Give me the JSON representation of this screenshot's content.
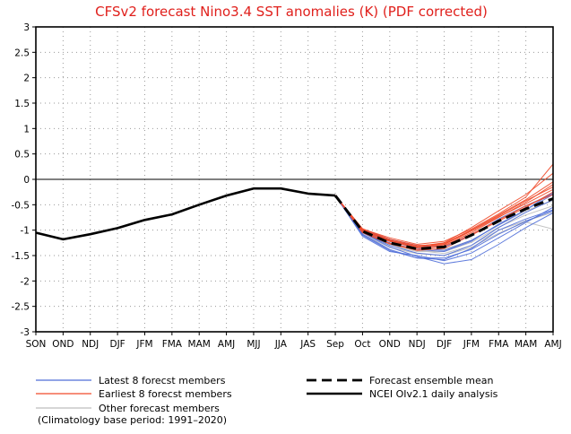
{
  "chart_data": {
    "type": "line",
    "title": "CFSv2 forecast Nino3.4 SST anomalies (K) (PDF corrected)",
    "xlabel": "",
    "ylabel": "",
    "categories": [
      "SON",
      "OND",
      "NDJ",
      "DJF",
      "JFM",
      "FMA",
      "MAM",
      "AMJ",
      "MJJ",
      "JJA",
      "JAS",
      "Sep",
      "Oct",
      "OND",
      "NDJ",
      "DJF",
      "JFM",
      "FMA",
      "MAM",
      "AMJ"
    ],
    "ylim": [
      -3,
      3
    ],
    "yticks": [
      -3,
      -2.5,
      -2,
      -1.5,
      -1,
      -0.5,
      0,
      0.5,
      1,
      1.5,
      2,
      2.5,
      3
    ],
    "grid": true,
    "colors": {
      "latest": "#4f6ed8",
      "earliest": "#f04a2a",
      "other": "#bdbdbd",
      "mean": "#000000",
      "analysis": "#000000",
      "title": "#e0201c"
    },
    "analysis": {
      "name": "NCEI OIv2.1 daily analysis",
      "x_index": [
        0,
        1,
        2,
        3,
        4,
        5,
        6,
        7,
        8,
        9,
        10,
        11
      ],
      "values": [
        -1.05,
        -1.18,
        -1.08,
        -0.96,
        -0.8,
        -0.69,
        -0.5,
        -0.32,
        -0.18,
        -0.18,
        -0.28,
        -0.32
      ]
    },
    "ensemble_mean": {
      "name": "Forecast ensemble mean",
      "x_index": [
        11,
        12,
        13,
        14,
        15,
        16,
        17,
        18,
        19
      ],
      "values": [
        -0.32,
        -1.02,
        -1.25,
        -1.37,
        -1.33,
        -1.1,
        -0.82,
        -0.58,
        -0.38
      ]
    },
    "member_groups": [
      {
        "group": "latest",
        "name": "Latest 8 forecst members",
        "x_index": [
          11,
          12,
          13,
          14,
          15,
          16,
          17,
          18,
          19
        ],
        "members": [
          [
            -0.32,
            -1.08,
            -1.38,
            -1.55,
            -1.58,
            -1.36,
            -1.0,
            -0.78,
            -0.6
          ],
          [
            -0.32,
            -1.05,
            -1.33,
            -1.52,
            -1.66,
            -1.58,
            -1.28,
            -0.95,
            -0.66
          ],
          [
            -0.32,
            -1.12,
            -1.42,
            -1.5,
            -1.6,
            -1.45,
            -1.15,
            -0.85,
            -0.55
          ],
          [
            -0.32,
            -1.0,
            -1.2,
            -1.35,
            -1.4,
            -1.2,
            -0.9,
            -0.6,
            -0.3
          ],
          [
            -0.32,
            -1.05,
            -1.3,
            -1.45,
            -1.5,
            -1.3,
            -0.95,
            -0.65,
            -0.4
          ],
          [
            -0.32,
            -0.98,
            -1.18,
            -1.3,
            -1.33,
            -1.1,
            -0.78,
            -0.52,
            -0.28
          ],
          [
            -0.32,
            -1.1,
            -1.4,
            -1.55,
            -1.55,
            -1.38,
            -1.08,
            -0.82,
            -0.62
          ],
          [
            -0.32,
            -1.02,
            -1.25,
            -1.38,
            -1.42,
            -1.22,
            -0.88,
            -0.6,
            -0.25
          ]
        ]
      },
      {
        "group": "earliest",
        "name": "Earliest 8 forecst members",
        "x_index": [
          11,
          12,
          13,
          14,
          15,
          16,
          17,
          18,
          19
        ],
        "members": [
          [
            -0.32,
            -0.98,
            -1.15,
            -1.28,
            -1.22,
            -0.98,
            -0.68,
            -0.35,
            0.3
          ],
          [
            -0.32,
            -1.0,
            -1.2,
            -1.32,
            -1.25,
            -0.95,
            -0.62,
            -0.3,
            0.12
          ],
          [
            -0.32,
            -1.02,
            -1.22,
            -1.35,
            -1.3,
            -1.05,
            -0.75,
            -0.45,
            -0.1
          ],
          [
            -0.32,
            -0.97,
            -1.18,
            -1.3,
            -1.28,
            -1.0,
            -0.7,
            -0.4,
            -0.05
          ],
          [
            -0.32,
            -1.05,
            -1.27,
            -1.4,
            -1.36,
            -1.1,
            -0.82,
            -0.55,
            -0.25
          ],
          [
            -0.32,
            -1.0,
            -1.22,
            -1.34,
            -1.28,
            -1.02,
            -0.74,
            -0.48,
            -0.2
          ],
          [
            -0.32,
            -1.03,
            -1.26,
            -1.38,
            -1.32,
            -1.08,
            -0.8,
            -0.52,
            -0.3
          ],
          [
            -0.32,
            -0.99,
            -1.2,
            -1.32,
            -1.26,
            -1.0,
            -0.72,
            -0.42,
            -0.15
          ]
        ]
      },
      {
        "group": "other",
        "name": "Other forecast members",
        "x_index": [
          11,
          12,
          13,
          14,
          15,
          16,
          17,
          18,
          19
        ],
        "members": [
          [
            -0.32,
            -1.08,
            -1.34,
            -1.46,
            -1.5,
            -1.34,
            -1.06,
            -0.84,
            -0.98
          ],
          [
            -0.32,
            -1.02,
            -1.28,
            -1.4,
            -1.46,
            -1.3,
            -1.0,
            -0.82,
            -0.65
          ],
          [
            -0.32,
            -1.0,
            -1.22,
            -1.36,
            -1.38,
            -1.2,
            -0.9,
            -0.62,
            -0.42
          ],
          [
            -0.32,
            -1.04,
            -1.3,
            -1.42,
            -1.42,
            -1.24,
            -0.94,
            -0.7,
            -0.52
          ]
        ]
      }
    ],
    "legend": [
      {
        "label": "Latest 8 forecst members",
        "group": "latest",
        "style": "thin"
      },
      {
        "label": "Earliest 8 forecst members",
        "group": "earliest",
        "style": "thin"
      },
      {
        "label": "Other forecast members",
        "group": "other",
        "style": "thin"
      },
      {
        "label": "Forecast ensemble mean",
        "group": "mean",
        "style": "dashed"
      },
      {
        "label": "NCEI OIv2.1 daily analysis",
        "group": "analysis",
        "style": "solid"
      }
    ],
    "footnote": "(Climatology base period: 1991–2020)"
  }
}
